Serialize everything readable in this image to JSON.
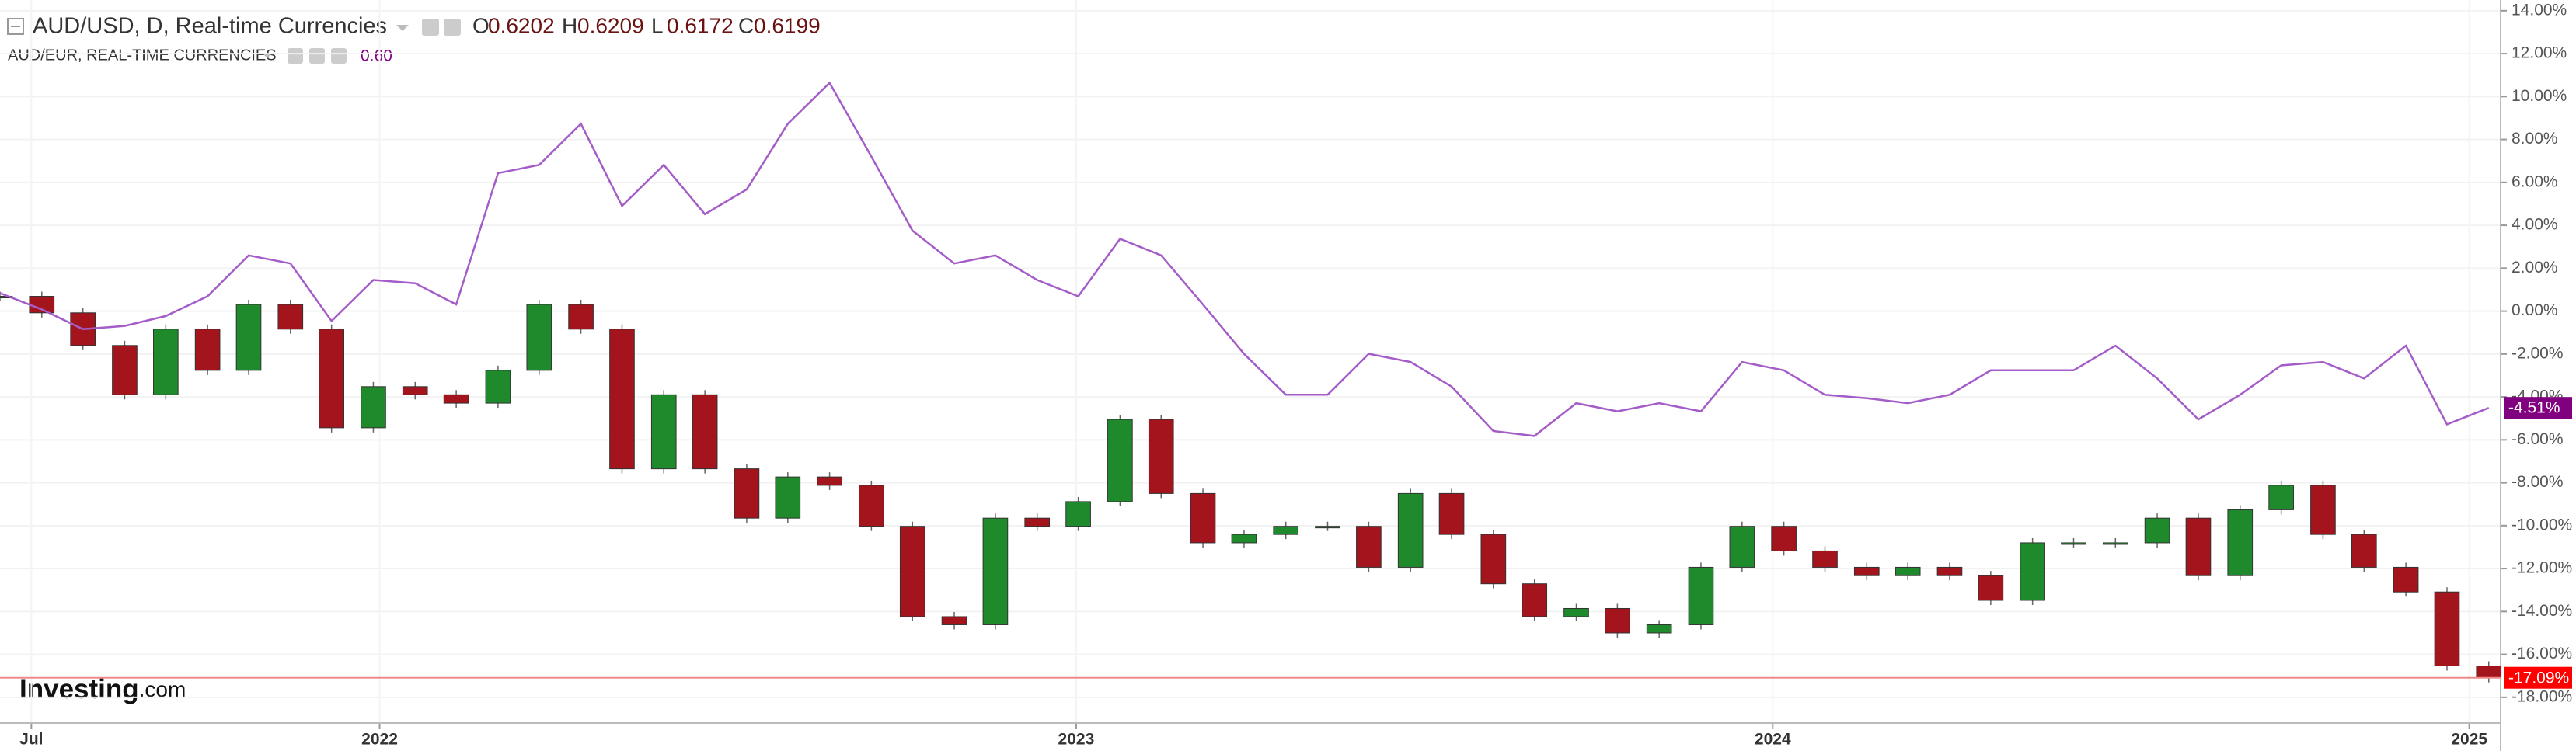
{
  "chart_data": {
    "type": "candlestick",
    "ohlc": [
      {
        "label": "O",
        "value": 0.6202
      },
      {
        "label": "H",
        "value": 0.6209
      },
      {
        "label": "L",
        "value": 0.6172
      },
      {
        "label": "C",
        "value": 0.6199
      }
    ],
    "compare_value": "0.60",
    "logo": [
      "Investing",
      ".com"
    ],
    "x": [
      2021.455,
      2021.515,
      2021.574,
      2021.634,
      2021.693,
      2021.753,
      2021.812,
      2021.872,
      2021.931,
      2021.991,
      2022.051,
      2022.11,
      2022.17,
      2022.229,
      2022.289,
      2022.348,
      2022.408,
      2022.467,
      2022.527,
      2022.586,
      2022.646,
      2022.706,
      2022.765,
      2022.825,
      2022.884,
      2022.944,
      2023.003,
      2023.063,
      2023.122,
      2023.182,
      2023.241,
      2023.301,
      2023.361,
      2023.42,
      2023.48,
      2023.539,
      2023.599,
      2023.658,
      2023.718,
      2023.777,
      2023.837,
      2023.897,
      2023.956,
      2024.016,
      2024.075,
      2024.135,
      2024.194,
      2024.254,
      2024.313,
      2024.373,
      2024.432,
      2024.492,
      2024.552,
      2024.611,
      2024.671,
      2024.73,
      2024.79,
      2024.849,
      2024.909,
      2024.968,
      2025.028
    ],
    "series": [
      {
        "title": "AUD/USD, D, Real-time Currencies",
        "type": "candlestick",
        "up_color": "#1f8a2c",
        "down_color": "#a3141c",
        "values": [
          0.69,
          -0.08,
          -1.6,
          -3.9,
          -0.84,
          -2.76,
          0.31,
          -0.84,
          -5.44,
          -3.52,
          -3.9,
          -4.29,
          -2.76,
          0.31,
          -0.84,
          -7.35,
          -3.9,
          -7.35,
          -9.65,
          -7.73,
          -8.12,
          -10.03,
          -14.24,
          -14.62,
          -9.65,
          -10.03,
          -8.88,
          -5.05,
          -8.5,
          -10.8,
          -10.41,
          -10.03,
          -10.03,
          -11.94,
          -8.5,
          -10.41,
          -12.71,
          -14.24,
          -13.86,
          -15.0,
          -14.62,
          -11.94,
          -10.03,
          -11.18,
          -11.94,
          -12.33,
          -11.94,
          -12.33,
          -13.48,
          -10.8,
          -10.8,
          -10.8,
          -9.65,
          -12.33,
          -9.26,
          -8.12,
          -10.41,
          -11.94,
          -13.09,
          -16.54,
          -17.09
        ],
        "last_value_label": "-17.09%",
        "last_color": "#ff0000"
      },
      {
        "title": "AUD/EUR, REAL-TIME CURRENCIES",
        "type": "line",
        "color": "#a45cc8",
        "values": [
          0.84,
          0.08,
          -0.84,
          -0.69,
          -0.23,
          0.69,
          2.6,
          2.22,
          -0.46,
          1.45,
          1.3,
          0.31,
          6.43,
          6.81,
          8.73,
          4.9,
          6.81,
          4.52,
          5.67,
          8.73,
          10.64,
          7.2,
          3.75,
          2.22,
          2.6,
          1.45,
          0.69,
          3.37,
          2.6,
          0.31,
          -1.99,
          -3.9,
          -3.9,
          -1.99,
          -2.37,
          -3.52,
          -5.59,
          -5.82,
          -4.29,
          -4.67,
          -4.29,
          -4.67,
          -2.37,
          -2.76,
          -3.9,
          -4.06,
          -4.29,
          -3.9,
          -2.76,
          -2.76,
          -2.76,
          -1.61,
          -3.14,
          -5.05,
          -3.9,
          -2.53,
          -2.37,
          -3.14,
          -1.61,
          -5.28,
          -4.51
        ],
        "last_value_label": "-4.51%",
        "last_color": "#800080"
      }
    ],
    "xlim": [
      2021.455,
      2025.045
    ],
    "xticks": [
      {
        "value": 2021.5,
        "label": "Jul"
      },
      2022,
      2023,
      2024,
      2025
    ],
    "ylim": [
      -19.2,
      14.5
    ],
    "yticks": [
      {
        "value": 14,
        "label": "14.00%"
      },
      {
        "value": 12,
        "label": "12.00%"
      },
      {
        "value": 10,
        "label": "10.00%"
      },
      {
        "value": 8,
        "label": "8.00%"
      },
      {
        "value": 6,
        "label": "6.00%"
      },
      {
        "value": 4,
        "label": "4.00%"
      },
      {
        "value": 2,
        "label": "2.00%"
      },
      {
        "value": 0,
        "label": "0.00%"
      },
      {
        "value": -2,
        "label": "-2.00%"
      },
      {
        "value": -4,
        "label": "-4.00%"
      },
      {
        "value": -6,
        "label": "-6.00%"
      },
      {
        "value": -8,
        "label": "-8.00%"
      },
      {
        "value": -10,
        "label": "-10.00%"
      },
      {
        "value": -12,
        "label": "-12.00%"
      },
      {
        "value": -14,
        "label": "-14.00%"
      },
      {
        "value": -16,
        "label": "-16.00%"
      },
      {
        "value": -18,
        "label": "-18.00%"
      }
    ],
    "grid": true
  }
}
